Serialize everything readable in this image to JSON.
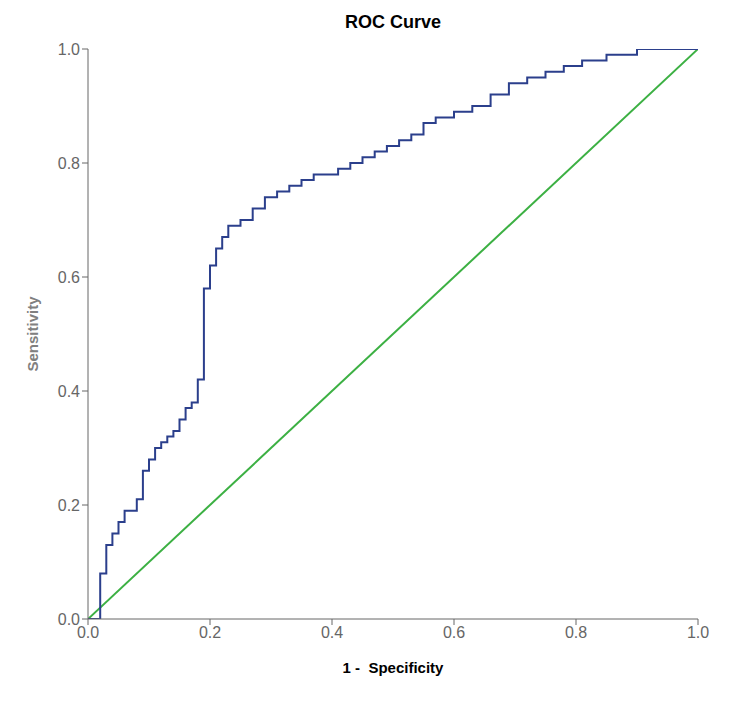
{
  "chart_data": {
    "type": "line",
    "title": "ROC Curve",
    "xlabel": "1 -  Specificity",
    "ylabel": "Sensitivity",
    "xlim": [
      0.0,
      1.0
    ],
    "ylim": [
      0.0,
      1.0
    ],
    "xticks": [
      {
        "value": 0.0,
        "label": "0.0"
      },
      0.2,
      0.4,
      0.6,
      0.8,
      {
        "value": 1.0,
        "label": "1.0"
      }
    ],
    "yticks": [
      {
        "value": 0.0,
        "label": "0.0"
      },
      0.2,
      0.4,
      0.6,
      0.8,
      {
        "value": 1.0,
        "label": "1.0"
      }
    ],
    "grid": false,
    "series": [
      {
        "color": "#3cb043",
        "x": [
          0,
          1
        ],
        "values": [
          0,
          1
        ]
      },
      {
        "color": "#2b3f8c",
        "x": [
          0.0,
          0.02,
          0.02,
          0.03,
          0.03,
          0.04,
          0.04,
          0.05,
          0.05,
          0.06,
          0.06,
          0.08,
          0.08,
          0.09,
          0.09,
          0.1,
          0.1,
          0.11,
          0.11,
          0.12,
          0.12,
          0.13,
          0.13,
          0.14,
          0.14,
          0.15,
          0.15,
          0.16,
          0.16,
          0.17,
          0.17,
          0.18,
          0.18,
          0.19,
          0.19,
          0.2,
          0.2,
          0.21,
          0.21,
          0.22,
          0.22,
          0.23,
          0.23,
          0.25,
          0.25,
          0.27,
          0.27,
          0.29,
          0.29,
          0.31,
          0.31,
          0.33,
          0.33,
          0.35,
          0.35,
          0.37,
          0.37,
          0.39,
          0.39,
          0.41,
          0.41,
          0.43,
          0.43,
          0.45,
          0.45,
          0.47,
          0.47,
          0.49,
          0.49,
          0.51,
          0.51,
          0.53,
          0.53,
          0.55,
          0.55,
          0.57,
          0.57,
          0.6,
          0.6,
          0.63,
          0.63,
          0.66,
          0.66,
          0.69,
          0.69,
          0.72,
          0.72,
          0.75,
          0.75,
          0.78,
          0.78,
          0.81,
          0.81,
          0.85,
          0.85,
          0.9,
          0.9,
          0.95,
          0.95,
          1.0
        ],
        "values": [
          0.0,
          0.0,
          0.08,
          0.08,
          0.13,
          0.13,
          0.15,
          0.15,
          0.17,
          0.17,
          0.19,
          0.19,
          0.21,
          0.21,
          0.26,
          0.26,
          0.28,
          0.28,
          0.3,
          0.3,
          0.31,
          0.31,
          0.32,
          0.32,
          0.33,
          0.33,
          0.35,
          0.35,
          0.37,
          0.37,
          0.38,
          0.38,
          0.42,
          0.42,
          0.58,
          0.58,
          0.62,
          0.62,
          0.65,
          0.65,
          0.67,
          0.67,
          0.69,
          0.69,
          0.7,
          0.7,
          0.72,
          0.72,
          0.74,
          0.74,
          0.75,
          0.75,
          0.76,
          0.76,
          0.77,
          0.77,
          0.78,
          0.78,
          0.78,
          0.78,
          0.79,
          0.79,
          0.8,
          0.8,
          0.81,
          0.81,
          0.82,
          0.82,
          0.83,
          0.83,
          0.84,
          0.84,
          0.85,
          0.85,
          0.87,
          0.87,
          0.88,
          0.88,
          0.89,
          0.89,
          0.9,
          0.9,
          0.92,
          0.92,
          0.94,
          0.94,
          0.95,
          0.95,
          0.96,
          0.96,
          0.97,
          0.97,
          0.98,
          0.98,
          0.99,
          0.99,
          1.0,
          1.0,
          1.0,
          1.0
        ]
      }
    ]
  }
}
